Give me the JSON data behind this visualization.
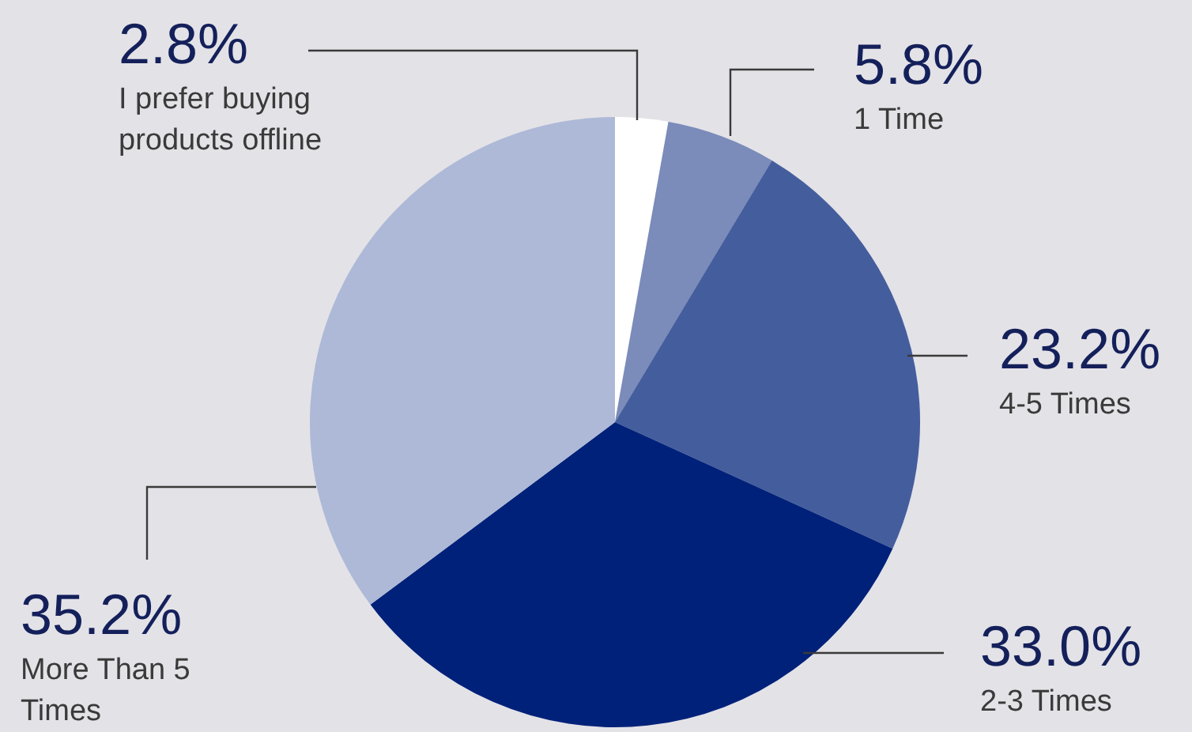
{
  "chart_data": {
    "type": "pie",
    "categories": [
      "I prefer buying products offline",
      "1 Time",
      "4-5 Times",
      "2-3 Times",
      "More Than 5 Times"
    ],
    "values": [
      2.8,
      5.8,
      23.2,
      33.0,
      35.2
    ],
    "colors": [
      "#ffffff",
      "#7b8bba",
      "#445d9d",
      "#00217a",
      "#adb9d7"
    ],
    "value_labels": [
      "2.8%",
      "5.8%",
      "23.2%",
      "33.0%",
      "35.2%"
    ]
  }
}
